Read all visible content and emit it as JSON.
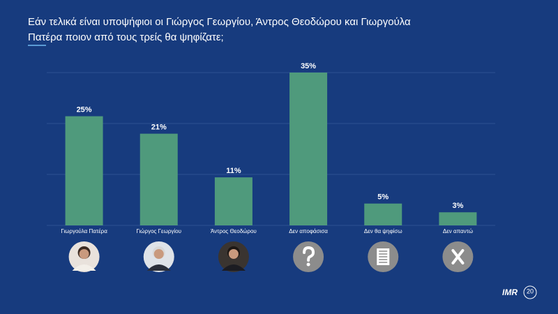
{
  "chart_data": {
    "type": "bar",
    "title_lines": [
      "Εάν τελικά είναι υποψήφιοι οι Γιώργος Γεωργίου, Άντρος Θεοδώρου και Γιωργούλα",
      "Πατέρα ποιον από τους τρείς θα ψηφίζατε;"
    ],
    "categories": [
      "Γιωργούλα Πατέρα",
      "Γιώργος Γεωργίου",
      "Άντρος Θεοδώρου",
      "Δεν αποφάσισα",
      "Δεν θα ψηφίσω",
      "Δεν απαντώ"
    ],
    "values": [
      25,
      21,
      11,
      35,
      5,
      3
    ],
    "value_labels": [
      "25%",
      "21%",
      "11%",
      "35%",
      "5%",
      "3%"
    ],
    "color": "#4f9a7c",
    "ylim": [
      0,
      35
    ],
    "yticks": [
      0,
      11.67,
      23.33,
      35
    ],
    "grid": true
  },
  "logo": {
    "name": "IMR",
    "years": "20"
  }
}
